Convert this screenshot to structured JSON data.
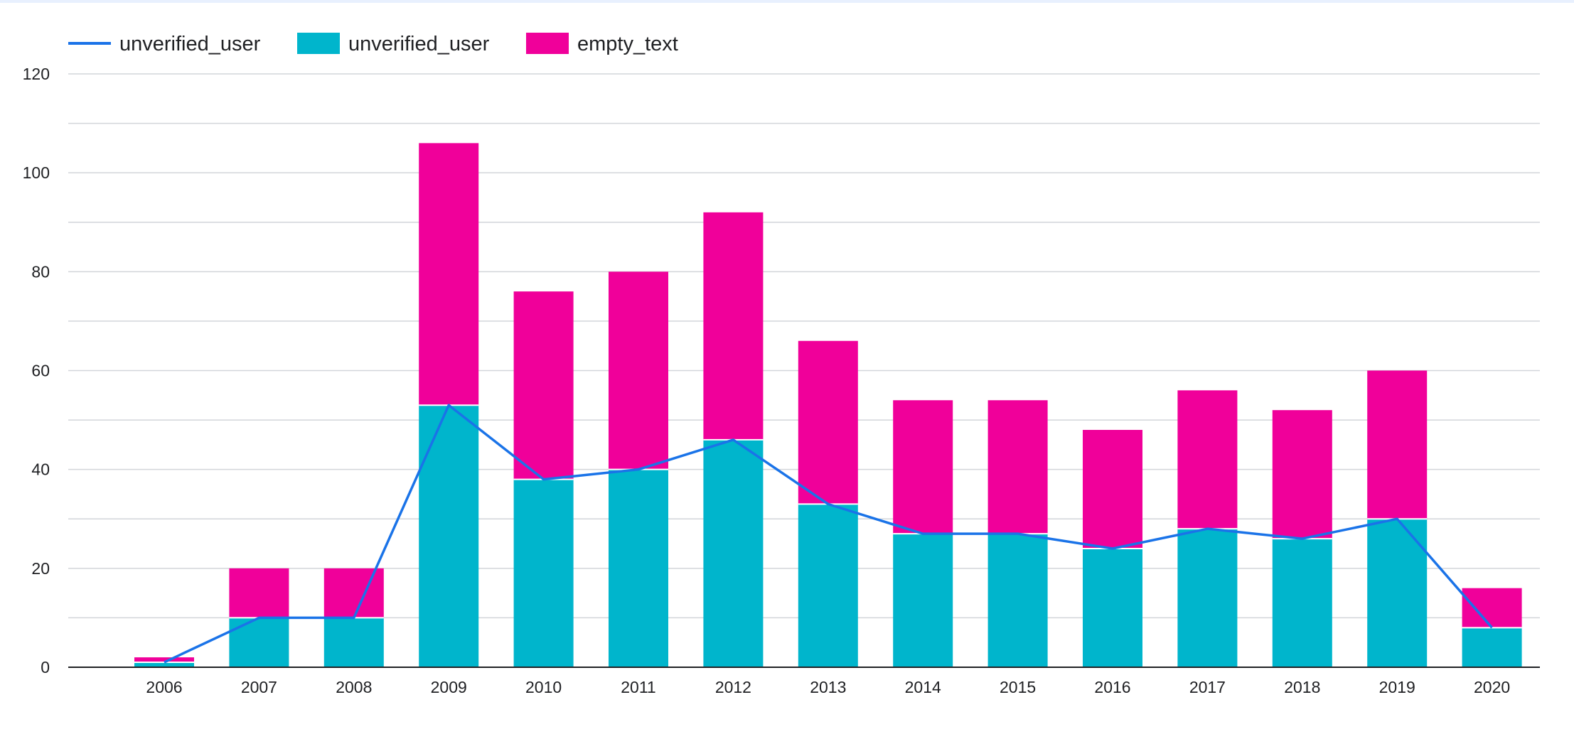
{
  "chart_data": {
    "type": "bar",
    "stacked": true,
    "categories": [
      "2006",
      "2007",
      "2008",
      "2009",
      "2010",
      "2011",
      "2012",
      "2013",
      "2014",
      "2015",
      "2016",
      "2017",
      "2018",
      "2019",
      "2020"
    ],
    "series": [
      {
        "name": "unverified_user",
        "kind": "bar",
        "color": "#00b5cc",
        "values": [
          1,
          10,
          10,
          53,
          38,
          40,
          46,
          33,
          27,
          27,
          24,
          28,
          26,
          30,
          8
        ]
      },
      {
        "name": "empty_text",
        "kind": "bar",
        "color": "#f0009a",
        "values": [
          1,
          10,
          10,
          53,
          38,
          40,
          46,
          33,
          27,
          27,
          24,
          28,
          26,
          30,
          8
        ]
      },
      {
        "name": "unverified_user",
        "kind": "line",
        "color": "#1a73e8",
        "values": [
          1,
          10,
          10,
          53,
          38,
          40,
          46,
          33,
          27,
          27,
          24,
          28,
          26,
          30,
          8
        ]
      }
    ],
    "legend": [
      {
        "name": "unverified_user",
        "marker": "line",
        "color": "#1a73e8"
      },
      {
        "name": "unverified_user",
        "marker": "box",
        "color": "#00b5cc"
      },
      {
        "name": "empty_text",
        "marker": "box",
        "color": "#f0009a"
      }
    ],
    "legend_position": "top-left",
    "yticks": [
      "0",
      "20",
      "40",
      "60",
      "80",
      "100",
      "120"
    ],
    "ylim": [
      0,
      120
    ],
    "grid": true,
    "title": "",
    "xlabel": "",
    "ylabel": ""
  }
}
